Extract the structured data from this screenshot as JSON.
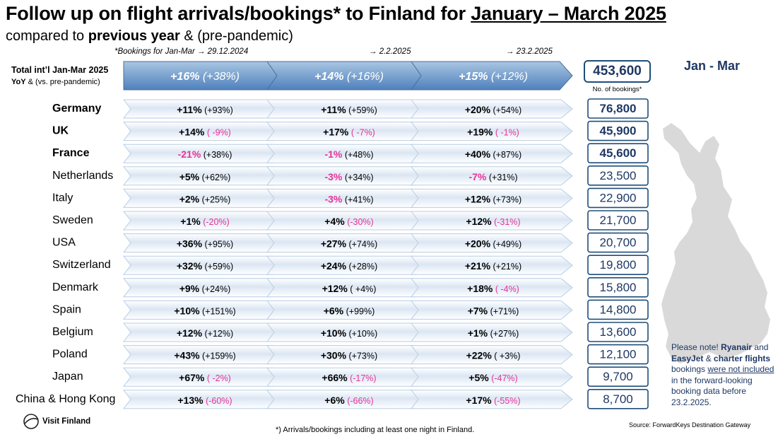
{
  "title": {
    "part1": "Follow up on flight arrivals/bookings* to Finland for ",
    "part2": "January – March 2025"
  },
  "subtitle": {
    "part1": "compared to ",
    "part2": "previous year",
    "part3": " & (pre-pandemic)"
  },
  "header_notes": [
    "*Bookings for Jan-Mar   → 29.12.2024",
    "→ 2.2.2025",
    "→ 23.2.2025"
  ],
  "total_label": "Total int’l Jan-Mar 2025",
  "total_sub": {
    "bold": "YoY",
    "rest": " & (vs. pre-pandemic)"
  },
  "total_box": {
    "value": "453,600",
    "note": "No. of bookings*"
  },
  "map_label": "Jan - Mar",
  "note": {
    "t1": "Please note! ",
    "t2": "Ryanair",
    "t3": " and ",
    "t4": "EasyJet",
    "t5": " & ",
    "t6": "charter flights",
    "t7": " bookings ",
    "t8": "were not included",
    "t9": " in the forward-looking  booking data before 23.2.2025."
  },
  "footnote": "*) Arrivals/bookings including at least one night in Finland.",
  "source": "Source: ForwardKeys Destination Gateway",
  "logo_text": "Visit Finland",
  "colors": {
    "navy": "#1f3864",
    "border": "#1f4e79",
    "pink": "#e8339a",
    "header_arrow_top": "#a9c6e2",
    "header_arrow_bottom": "#4f81bd",
    "row_arrow": "#dbe6f3",
    "map": "#d9d9d9"
  },
  "chart_data": {
    "type": "table",
    "columns": [
      "29.12.2024",
      "2.2.2025",
      "23.2.2025"
    ],
    "total": {
      "label": "Total int’l Jan-Mar 2025",
      "yoy": [
        "+16%",
        "+14%",
        "+15%"
      ],
      "pre": [
        "(+38%)",
        "(+16%)",
        "(+12%)"
      ],
      "bookings": "453,600"
    },
    "rows": [
      {
        "country": "Germany",
        "bold": true,
        "yoy": [
          "+11%",
          "+11%",
          "+20%"
        ],
        "pre": [
          "(+93%)",
          "(+59%)",
          "(+54%)"
        ],
        "bookings": "76,800"
      },
      {
        "country": "UK",
        "bold": true,
        "yoy": [
          "+14%",
          "+17%",
          "+19%"
        ],
        "pre": [
          "(  -9%)",
          "(  -7%)",
          "(  -1%)"
        ],
        "bookings": "45,900"
      },
      {
        "country": "France",
        "bold": true,
        "yoy": [
          "-21%",
          "-1%",
          "+40%"
        ],
        "pre": [
          "(+38%)",
          "(+48%)",
          "(+87%)"
        ],
        "bookings": "45,600"
      },
      {
        "country": "Netherlands",
        "bold": false,
        "yoy": [
          "+5%",
          "-3%",
          "-7%"
        ],
        "pre": [
          "(+62%)",
          "(+34%)",
          "(+31%)"
        ],
        "bookings": "23,500"
      },
      {
        "country": "Italy",
        "bold": false,
        "yoy": [
          "+2%",
          "-3%",
          "+12%"
        ],
        "pre": [
          "(+25%)",
          "(+41%)",
          "(+73%)"
        ],
        "bookings": "22,900"
      },
      {
        "country": "Sweden",
        "bold": false,
        "yoy": [
          "+1%",
          "+4%",
          "+12%"
        ],
        "pre": [
          "(-20%)",
          "(-30%)",
          "(-31%)"
        ],
        "bookings": "21,700"
      },
      {
        "country": "USA",
        "bold": false,
        "yoy": [
          "+36%",
          "+27%",
          "+20%"
        ],
        "pre": [
          "(+95%)",
          "(+74%)",
          "(+49%)"
        ],
        "bookings": "20,700"
      },
      {
        "country": "Switzerland",
        "bold": false,
        "yoy": [
          "+32%",
          "+24%",
          "+21%"
        ],
        "pre": [
          "(+59%)",
          "(+28%)",
          "(+21%)"
        ],
        "bookings": "19,800"
      },
      {
        "country": "Denmark",
        "bold": false,
        "yoy": [
          "+9%",
          "+12%",
          "+18%"
        ],
        "pre": [
          "(+24%)",
          "( +4%)",
          "(  -4%)"
        ],
        "bookings": "15,800"
      },
      {
        "country": "Spain",
        "bold": false,
        "yoy": [
          "+10%",
          "+6%",
          "+7%"
        ],
        "pre": [
          "(+151%)",
          "(+99%)",
          "(+71%)"
        ],
        "bookings": "14,800"
      },
      {
        "country": "Belgium",
        "bold": false,
        "yoy": [
          "+12%",
          "+10%",
          "+1%"
        ],
        "pre": [
          "(+12%)",
          "(+10%)",
          "(+27%)"
        ],
        "bookings": "13,600"
      },
      {
        "country": "Poland",
        "bold": false,
        "yoy": [
          "+43%",
          "+30%",
          "+22%"
        ],
        "pre": [
          "(+159%)",
          "(+73%)",
          "(  +3%)"
        ],
        "bookings": "12,100"
      },
      {
        "country": "Japan",
        "bold": false,
        "yoy": [
          "+67%",
          "+66%",
          "+5%"
        ],
        "pre": [
          "(  -2%)",
          "(-17%)",
          "(-47%)"
        ],
        "bookings": "9,700"
      },
      {
        "country": "China & Hong Kong",
        "bold": false,
        "yoy": [
          "+13%",
          "+6%",
          "+17%"
        ],
        "pre": [
          "(-60%)",
          "(-66%)",
          "(-55%)"
        ],
        "bookings": "8,700"
      }
    ]
  }
}
